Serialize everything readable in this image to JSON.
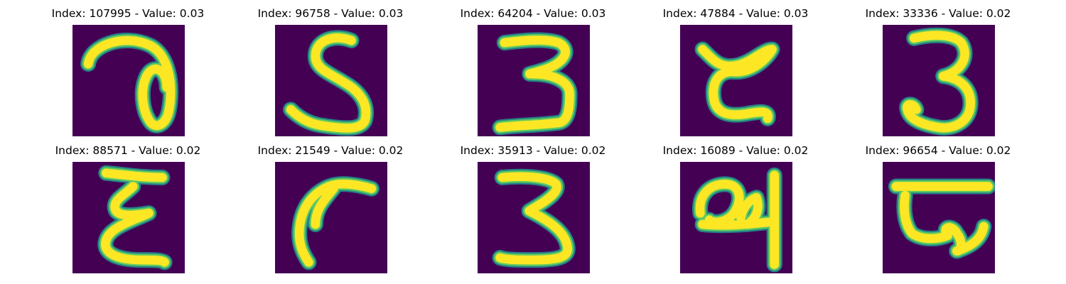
{
  "figure": {
    "background_color": "#440154",
    "stroke_core_color": "#fde725",
    "stroke_edge_color": "#21918c",
    "stroke_mid_color": "#5ec962",
    "panels": [
      {
        "title": "Index: 107995 - Value: 0.03",
        "glyph": "digit-a-loop"
      },
      {
        "title": "Index: 96758 - Value: 0.03",
        "glyph": "digit-five"
      },
      {
        "title": "Index: 64204 - Value: 0.03",
        "glyph": "digit-three"
      },
      {
        "title": "Index: 47884 - Value: 0.03",
        "glyph": "digit-curly-c"
      },
      {
        "title": "Index: 33336 - Value: 0.02",
        "glyph": "digit-three-curl"
      },
      {
        "title": "Index: 88571 - Value: 0.02",
        "glyph": "digit-epsilon"
      },
      {
        "title": "Index: 21549 - Value: 0.02",
        "glyph": "digit-hook"
      },
      {
        "title": "Index: 35913 - Value: 0.02",
        "glyph": "digit-three-flat"
      },
      {
        "title": "Index: 16089 - Value: 0.02",
        "glyph": "digit-script-bar"
      },
      {
        "title": "Index: 96654 - Value: 0.02",
        "glyph": "digit-bar-loop"
      }
    ]
  }
}
